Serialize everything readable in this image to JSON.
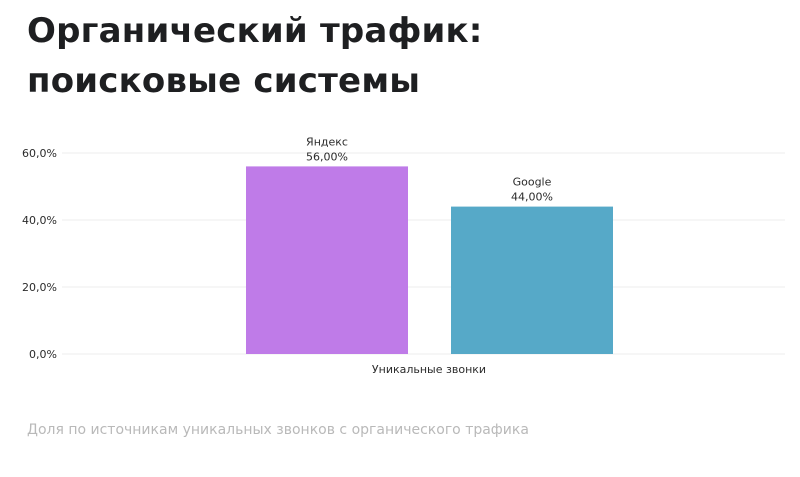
{
  "page": {
    "title_line1": "Органический трафик:",
    "title_line2": "поисковые системы",
    "caption": "Доля по источникам уникальных звонков с органического трафика"
  },
  "chart_data": {
    "type": "bar",
    "title": "Органический трафик: поисковые системы",
    "xlabel": "Уникальные звонки",
    "ylabel": "",
    "ylim": [
      0,
      60
    ],
    "yticks": [
      0,
      20,
      40,
      60
    ],
    "ytick_labels": [
      "0,0%",
      "20,0%",
      "40,0%",
      "60,0%"
    ],
    "grid": true,
    "categories": [
      "Уникальные звонки"
    ],
    "series": [
      {
        "name": "Яндекс",
        "values": [
          56.0
        ],
        "label": "56,00%",
        "color": "#bf7be8"
      },
      {
        "name": "Google",
        "values": [
          44.0
        ],
        "label": "44,00%",
        "color": "#56a9c8"
      }
    ]
  },
  "colors": {
    "grid": "#ececec",
    "axis_text": "#2b2b2b",
    "caption": "#b9b9b9"
  }
}
